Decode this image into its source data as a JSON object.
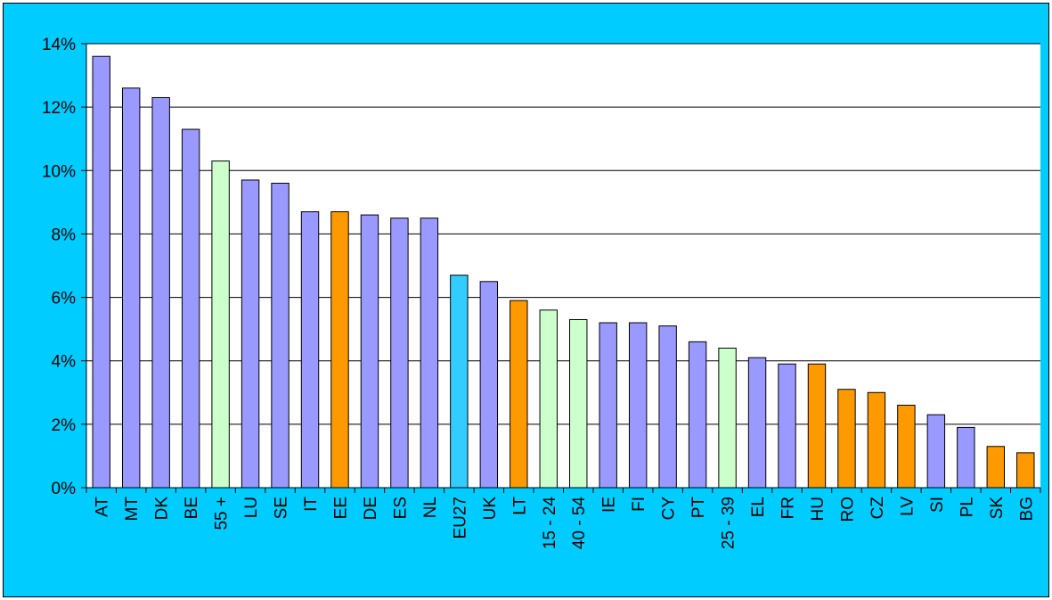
{
  "chart_data": {
    "type": "bar",
    "title": "",
    "xlabel": "",
    "ylabel": "",
    "ylim": [
      0,
      14
    ],
    "y_ticks": [
      0,
      2,
      4,
      6,
      8,
      10,
      12,
      14
    ],
    "y_tick_labels": [
      "0%",
      "2%",
      "4%",
      "6%",
      "8%",
      "10%",
      "12%",
      "14%"
    ],
    "grid": "horizontal",
    "legend": "none",
    "categories": [
      "AT",
      "MT",
      "DK",
      "BE",
      "55 +",
      "LU",
      "SE",
      "IT",
      "EE",
      "DE",
      "ES",
      "NL",
      "EU27",
      "UK",
      "LT",
      "15 - 24",
      "40 - 54",
      "IE",
      "FI",
      "CY",
      "PT",
      "25 - 39",
      "EL",
      "FR",
      "HU",
      "RO",
      "CZ",
      "LV",
      "SI",
      "PL",
      "SK",
      "BG"
    ],
    "values": [
      13.6,
      12.6,
      12.3,
      11.3,
      10.3,
      9.7,
      9.6,
      8.7,
      8.7,
      8.6,
      8.5,
      8.5,
      6.7,
      6.5,
      5.9,
      5.6,
      5.3,
      5.2,
      5.2,
      5.1,
      4.6,
      4.4,
      4.1,
      3.9,
      3.9,
      3.1,
      3.0,
      2.6,
      2.3,
      1.9,
      1.3,
      1.1
    ],
    "bar_colors": [
      "#9999ff",
      "#9999ff",
      "#9999ff",
      "#9999ff",
      "#ccffcc",
      "#9999ff",
      "#9999ff",
      "#9999ff",
      "#ff9900",
      "#9999ff",
      "#9999ff",
      "#9999ff",
      "#33ccff",
      "#9999ff",
      "#ff9900",
      "#ccffcc",
      "#ccffcc",
      "#9999ff",
      "#9999ff",
      "#9999ff",
      "#9999ff",
      "#ccffcc",
      "#9999ff",
      "#9999ff",
      "#ff9900",
      "#ff9900",
      "#ff9900",
      "#ff9900",
      "#9999ff",
      "#9999ff",
      "#ff9900",
      "#ff9900"
    ]
  },
  "colors": {
    "frame_background": "#00ccff",
    "plot_background": "#ffffff",
    "gridline": "#000000",
    "bar_outline": "#000000"
  }
}
